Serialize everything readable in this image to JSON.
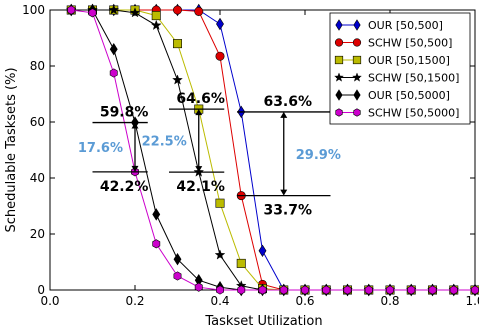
{
  "chart_data": {
    "type": "line",
    "xlabel": "Taskset Utilization",
    "ylabel": "Schedulable Tasksets (%)",
    "xlim": [
      0,
      1.0
    ],
    "ylim": [
      0,
      100
    ],
    "x_ticks": [
      0,
      0.2,
      0.4,
      0.6,
      0.8,
      1.0
    ],
    "x_tick_labels": [
      "0.0",
      "0.2",
      "0.4",
      "0.6",
      "0.8",
      "1.0"
    ],
    "y_ticks": [
      0,
      20,
      40,
      60,
      80,
      100
    ],
    "y_tick_labels": [
      "0",
      "20",
      "40",
      "60",
      "80",
      "100"
    ],
    "grid": false,
    "legend_position": "top-right",
    "x": [
      0.05,
      0.1,
      0.15,
      0.2,
      0.25,
      0.3,
      0.35,
      0.4,
      0.45,
      0.5,
      0.55,
      0.6,
      0.65,
      0.7,
      0.75,
      0.8,
      0.85,
      0.9,
      0.95,
      1.0
    ],
    "series": [
      {
        "name": "OUR [50,500]",
        "color": "#0000cc",
        "marker": "diamond",
        "values": [
          100,
          100,
          100,
          100,
          100,
          100,
          100,
          95,
          63.6,
          14,
          0,
          0,
          0,
          0,
          0,
          0,
          0,
          0,
          0,
          0
        ]
      },
      {
        "name": "SCHW [50,500]",
        "color": "#dd0000",
        "marker": "circle",
        "values": [
          100,
          100,
          100,
          100,
          100,
          100,
          99.5,
          83.5,
          33.7,
          2,
          0,
          0,
          0,
          0,
          0,
          0,
          0,
          0,
          0,
          0
        ]
      },
      {
        "name": "OUR [50,1500]",
        "color": "#bbbb00",
        "marker": "square",
        "values": [
          100,
          100,
          100,
          100,
          98,
          88,
          64.6,
          31,
          9.5,
          0.5,
          0,
          0,
          0,
          0,
          0,
          0,
          0,
          0,
          0,
          0
        ]
      },
      {
        "name": "SCHW [50,1500]",
        "color": "#000000",
        "marker": "star",
        "values": [
          100,
          100,
          100,
          99,
          94.5,
          75,
          42.1,
          12.5,
          1.5,
          0,
          0,
          0,
          0,
          0,
          0,
          0,
          0,
          0,
          0,
          0
        ]
      },
      {
        "name": "OUR [50,5000]",
        "color": "#000000",
        "marker": "diamond",
        "values": [
          100,
          100,
          86,
          59.8,
          27,
          11,
          3.5,
          1,
          0,
          0,
          0,
          0,
          0,
          0,
          0,
          0,
          0,
          0,
          0,
          0
        ]
      },
      {
        "name": "SCHW [50,5000]",
        "color": "#cc00cc",
        "marker": "hexagon",
        "values": [
          100,
          99,
          77.5,
          42.2,
          16.5,
          5,
          1,
          0,
          0,
          0,
          0,
          0,
          0,
          0,
          0,
          0,
          0,
          0,
          0,
          0
        ]
      }
    ],
    "annotations": [
      {
        "upper": 59.8,
        "lower": 42.2,
        "x_from": 0.1,
        "x_to": 0.23,
        "arrow_x": 0.2,
        "upper_label": "59.8%",
        "lower_label": "42.2%",
        "gap_label": "17.6%",
        "gap_color": "#5b9bd5"
      },
      {
        "upper": 64.6,
        "lower": 42.1,
        "x_from": 0.28,
        "x_to": 0.41,
        "arrow_x": 0.35,
        "upper_label": "64.6%",
        "lower_label": "42.1%",
        "gap_label": "22.5%",
        "gap_color": "#5b9bd5"
      },
      {
        "upper": 63.6,
        "lower": 33.7,
        "x_from": 0.44,
        "x_to": 0.66,
        "arrow_x": 0.55,
        "upper_label": "63.6%",
        "lower_label": "33.7%",
        "gap_label": "29.9%",
        "gap_color": "#5b9bd5"
      }
    ]
  }
}
